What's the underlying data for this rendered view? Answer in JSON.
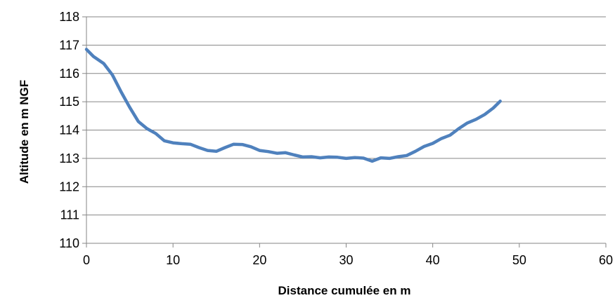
{
  "chart_data": {
    "type": "line",
    "title": "",
    "xlabel": "Distance cumulée en m",
    "ylabel": "Altitude en m NGF",
    "xlim": [
      0,
      60
    ],
    "ylim": [
      110,
      118
    ],
    "x_ticks": [
      "0",
      "10",
      "20",
      "30",
      "40",
      "50",
      "60"
    ],
    "y_ticks": [
      "110",
      "111",
      "112",
      "113",
      "114",
      "115",
      "116",
      "117",
      "118"
    ],
    "grid": "horizontal",
    "legend": "none",
    "series": [
      {
        "color": "#4F81BD",
        "x": [
          0,
          0.8,
          2,
          3,
          4,
          5,
          6,
          7,
          8,
          9,
          10,
          11,
          12,
          13,
          14,
          15,
          16,
          17,
          18,
          19,
          20,
          21,
          22,
          23,
          24,
          25,
          26,
          27,
          28,
          29,
          30,
          31,
          32,
          33,
          34,
          35,
          36,
          37,
          38,
          39,
          40,
          41,
          42,
          43,
          44,
          45,
          46,
          47,
          47.8
        ],
        "y": [
          116.85,
          116.6,
          116.35,
          115.95,
          115.35,
          114.8,
          114.3,
          114.05,
          113.88,
          113.62,
          113.55,
          113.52,
          113.5,
          113.38,
          113.28,
          113.25,
          113.38,
          113.5,
          113.49,
          113.41,
          113.28,
          113.24,
          113.18,
          113.2,
          113.12,
          113.05,
          113.06,
          113.02,
          113.05,
          113.04,
          113.0,
          113.03,
          113.01,
          112.9,
          113.02,
          113.0,
          113.06,
          113.1,
          113.25,
          113.42,
          113.53,
          113.7,
          113.82,
          114.05,
          114.25,
          114.38,
          114.55,
          114.78,
          115.02
        ]
      }
    ]
  }
}
